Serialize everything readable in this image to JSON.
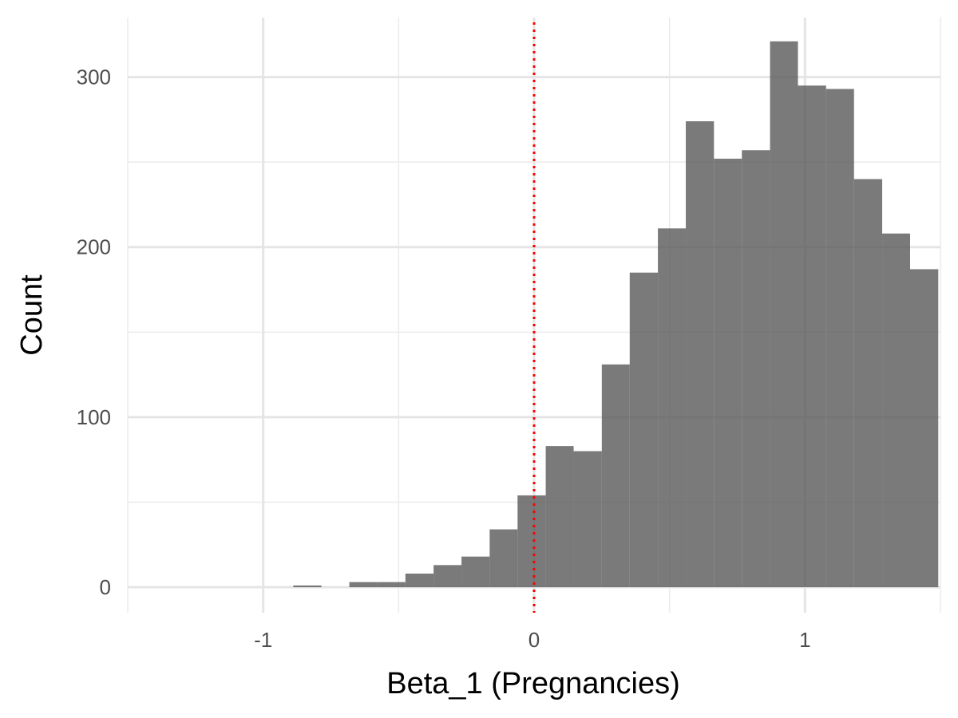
{
  "chart_data": {
    "type": "histogram",
    "title": "",
    "xlabel": "Beta_1 (Pregnancies)",
    "ylabel": "Count",
    "xlim": [
      -1.5,
      1.5
    ],
    "ylim": [
      -15,
      335
    ],
    "x_ticks": [
      {
        "value": -1,
        "label": "-1"
      },
      {
        "value": 0,
        "label": "0"
      },
      {
        "value": 1,
        "label": "1"
      }
    ],
    "x_minor_ticks": [
      -1.5,
      -0.5,
      0.5,
      1.5
    ],
    "y_ticks": [
      {
        "value": 0,
        "label": "0"
      },
      {
        "value": 100,
        "label": "100"
      },
      {
        "value": 200,
        "label": "200"
      },
      {
        "value": 300,
        "label": "300"
      }
    ],
    "y_minor_ticks": [
      50,
      150,
      250
    ],
    "grid": true,
    "bar_color": "#595959",
    "bar_opacity": 0.8,
    "reference_line": {
      "x": 0,
      "color": "#ff0000",
      "style": "dotted"
    },
    "bins": [
      {
        "x0": -0.889,
        "x1": -0.785,
        "count": 1
      },
      {
        "x0": -0.785,
        "x1": -0.682,
        "count": 0
      },
      {
        "x0": -0.682,
        "x1": -0.578,
        "count": 3
      },
      {
        "x0": -0.578,
        "x1": -0.475,
        "count": 3
      },
      {
        "x0": -0.475,
        "x1": -0.371,
        "count": 8
      },
      {
        "x0": -0.371,
        "x1": -0.268,
        "count": 13
      },
      {
        "x0": -0.268,
        "x1": -0.164,
        "count": 18
      },
      {
        "x0": -0.164,
        "x1": -0.061,
        "count": 34
      },
      {
        "x0": -0.061,
        "x1": 0.043,
        "count": 54
      },
      {
        "x0": 0.043,
        "x1": 0.146,
        "count": 83
      },
      {
        "x0": 0.146,
        "x1": 0.25,
        "count": 80
      },
      {
        "x0": 0.25,
        "x1": 0.353,
        "count": 131
      },
      {
        "x0": 0.353,
        "x1": 0.457,
        "count": 185
      },
      {
        "x0": 0.457,
        "x1": 0.56,
        "count": 211
      },
      {
        "x0": 0.56,
        "x1": 0.664,
        "count": 274
      },
      {
        "x0": 0.664,
        "x1": 0.767,
        "count": 252
      },
      {
        "x0": 0.767,
        "x1": 0.871,
        "count": 257
      },
      {
        "x0": 0.871,
        "x1": 0.974,
        "count": 321
      },
      {
        "x0": 0.974,
        "x1": 1.078,
        "count": 295
      },
      {
        "x0": 1.078,
        "x1": 1.181,
        "count": 293
      },
      {
        "x0": 1.181,
        "x1": 1.285,
        "count": 240
      },
      {
        "x0": 1.285,
        "x1": 1.388,
        "count": 208
      },
      {
        "x0": 1.388,
        "x1": 1.492,
        "count": 187
      }
    ]
  }
}
